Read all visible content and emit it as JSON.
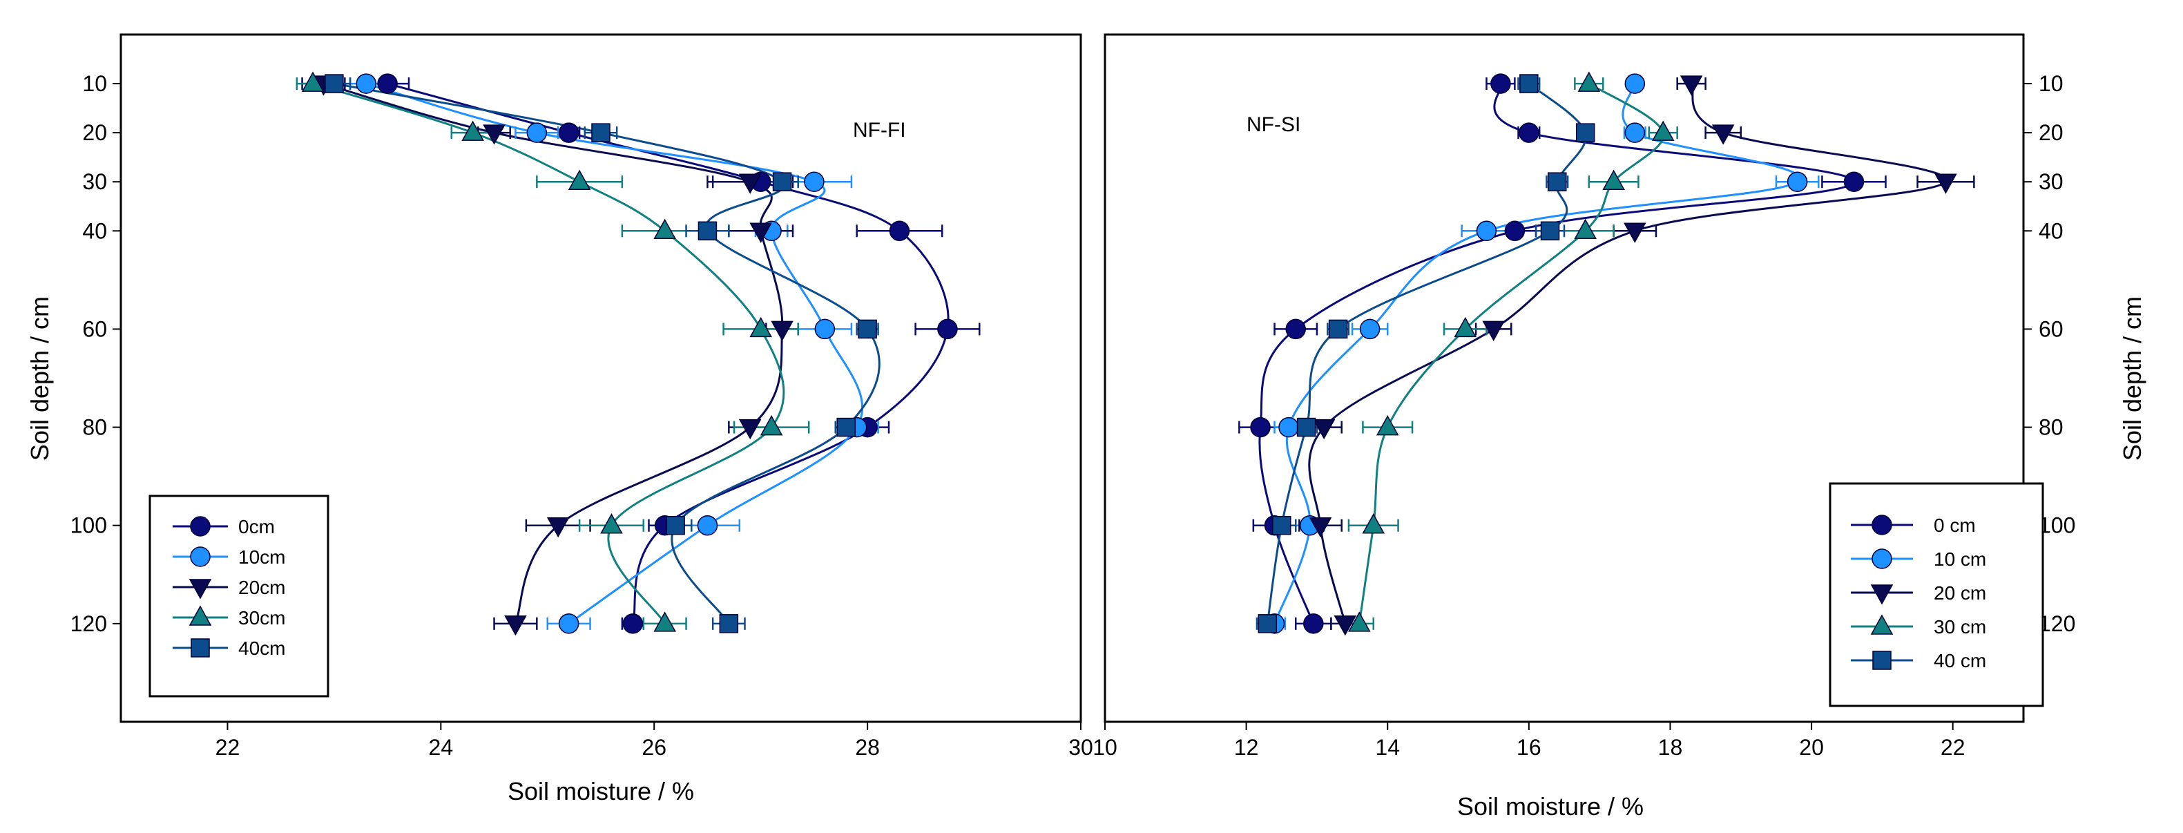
{
  "chart_data": [
    {
      "type": "line",
      "panel_label": "NF-FI",
      "xlabel": "Soil moisture / %",
      "ylabel": "Soil depth / cm",
      "xlim": [
        21,
        30
      ],
      "ylim": [
        140,
        0
      ],
      "x_ticks": [
        22,
        24,
        26,
        28,
        30
      ],
      "y_ticks": [
        10,
        20,
        30,
        40,
        60,
        80,
        100,
        120
      ],
      "y_axis_side": "left",
      "legend_position": "bottom-left",
      "grid": false,
      "series": [
        {
          "name": "0cm",
          "color": "#0a0a78",
          "marker": "circle",
          "x": [
            23.5,
            25.2,
            27.0,
            28.3,
            28.75,
            28.0,
            26.1,
            25.8
          ],
          "y": [
            10,
            20,
            30,
            40,
            60,
            80,
            100,
            120
          ],
          "err": [
            0.2,
            0.1,
            0.45,
            0.4,
            0.3,
            0.2,
            0.15,
            0.1
          ]
        },
        {
          "name": "10cm",
          "color": "#1e90ff",
          "marker": "circle",
          "x": [
            23.3,
            24.9,
            27.5,
            27.1,
            27.6,
            27.9,
            26.5,
            25.2
          ],
          "y": [
            10,
            20,
            30,
            40,
            60,
            80,
            100,
            120
          ],
          "err": [
            0.15,
            0.2,
            0.35,
            0.15,
            0.25,
            0.2,
            0.3,
            0.2
          ]
        },
        {
          "name": "20cm",
          "color": "#0a0a50",
          "marker": "triangle-down",
          "x": [
            22.9,
            24.5,
            26.9,
            27.0,
            27.2,
            26.9,
            25.1,
            24.7
          ],
          "y": [
            10,
            20,
            30,
            40,
            60,
            80,
            100,
            120
          ],
          "err": [
            0.2,
            0.15,
            0.4,
            0.3,
            0.15,
            0.2,
            0.3,
            0.2
          ]
        },
        {
          "name": "30cm",
          "color": "#108080",
          "marker": "triangle-up",
          "x": [
            22.8,
            24.3,
            25.3,
            26.1,
            27.0,
            27.1,
            25.6,
            26.1
          ],
          "y": [
            10,
            20,
            30,
            40,
            60,
            80,
            100,
            120
          ],
          "err": [
            0.15,
            0.2,
            0.4,
            0.4,
            0.35,
            0.35,
            0.3,
            0.2
          ]
        },
        {
          "name": "40cm",
          "color": "#0d4c8c",
          "marker": "square",
          "x": [
            23.0,
            25.5,
            27.2,
            26.5,
            28.0,
            27.8,
            26.2,
            26.7
          ],
          "y": [
            10,
            20,
            30,
            40,
            60,
            80,
            100,
            120
          ],
          "err": [
            0.15,
            0.15,
            0.15,
            0.2,
            0.1,
            0.1,
            0.15,
            0.15
          ]
        }
      ]
    },
    {
      "type": "line",
      "panel_label": "NF-SI",
      "xlabel": "Soil moisture / %",
      "ylabel": "Soil depth / cm",
      "xlim": [
        10,
        23
      ],
      "ylim": [
        140,
        0
      ],
      "x_ticks": [
        10,
        12,
        14,
        16,
        18,
        20,
        22
      ],
      "y_ticks": [
        10,
        20,
        30,
        40,
        60,
        80,
        100,
        120
      ],
      "y_axis_side": "right",
      "legend_position": "bottom-right",
      "grid": false,
      "series": [
        {
          "name": "0 cm",
          "color": "#0a0a78",
          "marker": "circle",
          "x": [
            15.6,
            16.0,
            20.6,
            15.8,
            12.7,
            12.2,
            12.4,
            12.95
          ],
          "y": [
            10,
            20,
            30,
            40,
            60,
            80,
            100,
            120
          ],
          "err": [
            0.2,
            0.15,
            0.45,
            0.3,
            0.3,
            0.3,
            0.3,
            0.25
          ]
        },
        {
          "name": "10 cm",
          "color": "#1e90ff",
          "marker": "circle",
          "x": [
            17.5,
            17.5,
            19.8,
            15.4,
            13.75,
            12.6,
            12.9,
            12.4
          ],
          "y": [
            10,
            20,
            30,
            40,
            60,
            80,
            100,
            120
          ],
          "err": [
            0.1,
            0.15,
            0.3,
            0.35,
            0.25,
            0.2,
            0.2,
            0.15
          ]
        },
        {
          "name": "20 cm",
          "color": "#0a0a50",
          "marker": "triangle-down",
          "x": [
            18.3,
            18.75,
            21.9,
            17.5,
            15.5,
            13.1,
            13.05,
            13.4
          ],
          "y": [
            10,
            20,
            30,
            40,
            60,
            80,
            100,
            120
          ],
          "err": [
            0.2,
            0.25,
            0.4,
            0.3,
            0.25,
            0.25,
            0.3,
            0.2
          ]
        },
        {
          "name": "30 cm",
          "color": "#108080",
          "marker": "triangle-up",
          "x": [
            16.85,
            17.9,
            17.2,
            16.8,
            15.1,
            14.0,
            13.8,
            13.6
          ],
          "y": [
            10,
            20,
            30,
            40,
            60,
            80,
            100,
            120
          ],
          "err": [
            0.2,
            0.2,
            0.35,
            0.4,
            0.3,
            0.35,
            0.35,
            0.2
          ]
        },
        {
          "name": "40 cm",
          "color": "#0d4c8c",
          "marker": "square",
          "x": [
            16.0,
            16.8,
            16.4,
            16.3,
            13.3,
            12.85,
            12.5,
            12.3
          ],
          "y": [
            10,
            20,
            30,
            40,
            60,
            80,
            100,
            120
          ],
          "err": [
            0.15,
            0.1,
            0.15,
            0.2,
            0.15,
            0.15,
            0.2,
            0.15
          ]
        }
      ]
    }
  ]
}
